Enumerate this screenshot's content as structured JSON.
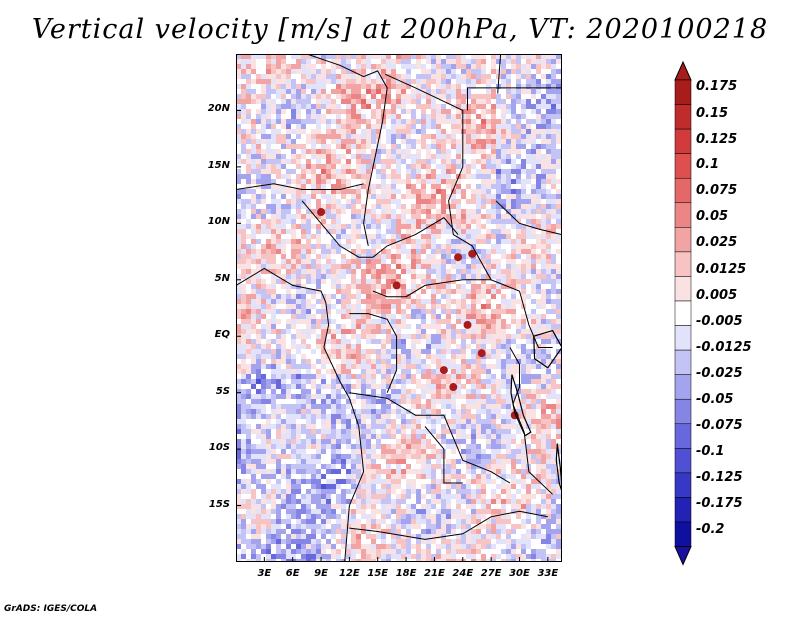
{
  "title": "Vertical velocity [m/s] at 200hPa, VT: 2020100218",
  "credit": "GrADS: IGES/COLA",
  "map": {
    "lat_labels": [
      "20N",
      "15N",
      "10N",
      "5N",
      "EQ",
      "5S",
      "10S",
      "15S"
    ],
    "lat_values": [
      20,
      15,
      10,
      5,
      0,
      -5,
      -10,
      -15
    ],
    "lon_labels": [
      "3E",
      "6E",
      "9E",
      "12E",
      "15E",
      "18E",
      "21E",
      "24E",
      "27E",
      "30E",
      "33E"
    ],
    "lon_values": [
      3,
      6,
      9,
      12,
      15,
      18,
      21,
      24,
      27,
      30,
      33
    ],
    "lon_range": [
      0,
      34.5
    ],
    "lat_range": [
      -20,
      25
    ]
  },
  "colorbar": {
    "labels": [
      "0.175",
      "0.15",
      "0.125",
      "0.1",
      "0.075",
      "0.05",
      "0.025",
      "0.0125",
      "0.005",
      "-0.005",
      "-0.0125",
      "-0.025",
      "-0.05",
      "-0.075",
      "-0.1",
      "-0.125",
      "-0.175",
      "-0.2"
    ],
    "colors": [
      "#a81c1c",
      "#c02b2b",
      "#d23b3b",
      "#de5050",
      "#e56868",
      "#ec8585",
      "#f2a4a4",
      "#f7c3c3",
      "#fbe2e2",
      "#ffffff",
      "#e2e2fb",
      "#c3c3f5",
      "#a4a4ee",
      "#8585e6",
      "#6868de",
      "#5050d4",
      "#3838c6",
      "#2222b4",
      "#1010a0"
    ],
    "top_color": "#a81c1c",
    "bottom_color": "#1a10a0"
  }
}
